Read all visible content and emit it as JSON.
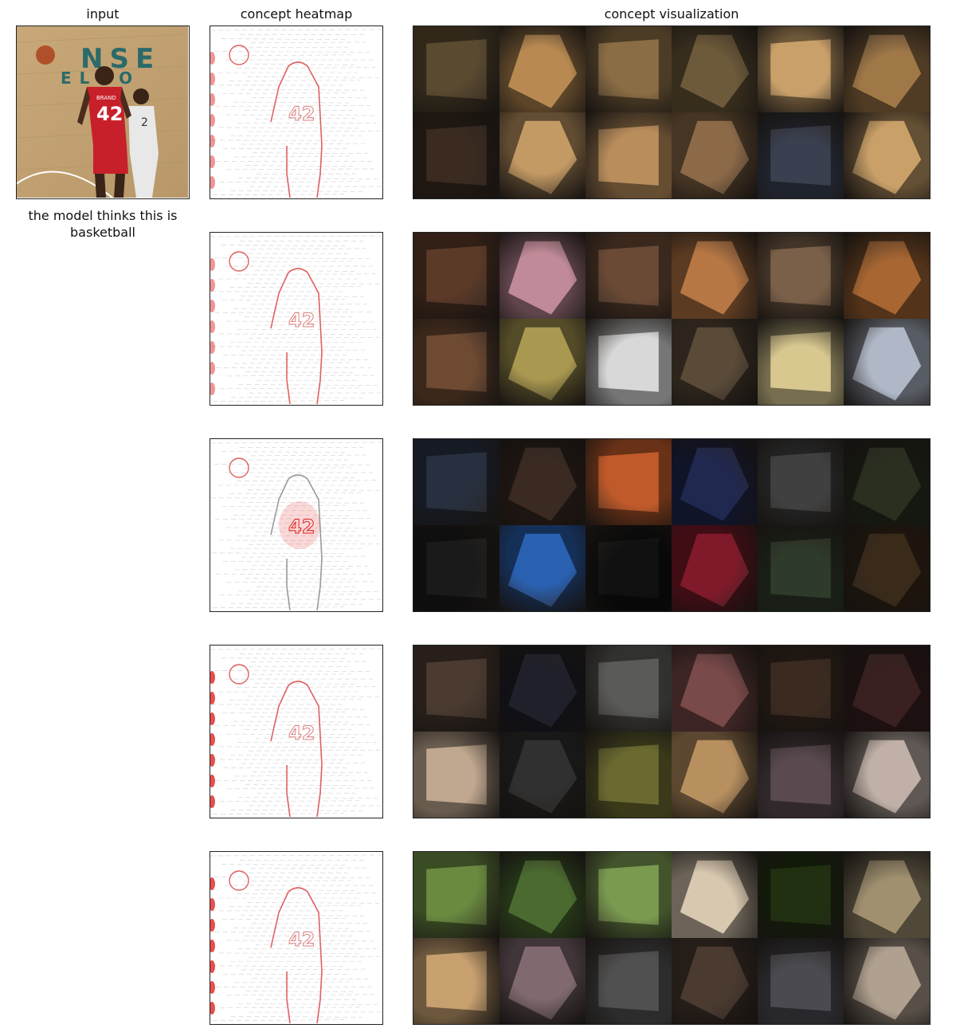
{
  "headers": {
    "input": "input",
    "heatmap": "concept heatmap",
    "visualization": "concept visualization"
  },
  "caption": "the model thinks this is basketball",
  "input_image": {
    "floor_text_1": "NSE",
    "floor_text_2": "ELHO",
    "jersey_name": "BRAND",
    "jersey_number": "42",
    "opponent_number": "2"
  },
  "concept_rows": [
    {
      "heatmap_focus": "player",
      "tiles": [
        "#5a4a30",
        "#b88a52",
        "#8a6d45",
        "#6d5a3a",
        "#c9a06a",
        "#a07848",
        "#3a2a20",
        "#c49a64",
        "#b98d5c",
        "#8c6a48",
        "#3a4050",
        "#c9a068"
      ]
    },
    {
      "heatmap_focus": "edges",
      "tiles": [
        "#5c3a28",
        "#c08a98",
        "#6a4a35",
        "#b77744",
        "#7a6048",
        "#a76632",
        "#6e4a32",
        "#a89850",
        "#d8d8d8",
        "#5a4a38",
        "#d8c890",
        "#b0b8c8"
      ]
    },
    {
      "heatmap_focus": "jersey",
      "tiles": [
        "#283040",
        "#3a2a22",
        "#c05a2a",
        "#202850",
        "#404040",
        "#2a3020",
        "#1a1a1a",
        "#2a60b0",
        "#101010",
        "#801a2a",
        "#2e3a2a",
        "#3a2a1a"
      ]
    },
    {
      "heatmap_focus": "left-edge",
      "tiles": [
        "#4a3a30",
        "#20202a",
        "#5a5a58",
        "#7a4a4a",
        "#3a2a20",
        "#3a2020",
        "#c0a890",
        "#303030",
        "#6a6a30",
        "#b89060",
        "#5a4a50",
        "#c0b0a8"
      ]
    },
    {
      "heatmap_focus": "left-edge",
      "tiles": [
        "#6a8a40",
        "#4a6a30",
        "#7a9a50",
        "#d8c8b0",
        "#203010",
        "#a09070",
        "#c8a070",
        "#806a70",
        "#505050",
        "#4a3a30",
        "#4a4a50",
        "#b0a090"
      ]
    }
  ]
}
